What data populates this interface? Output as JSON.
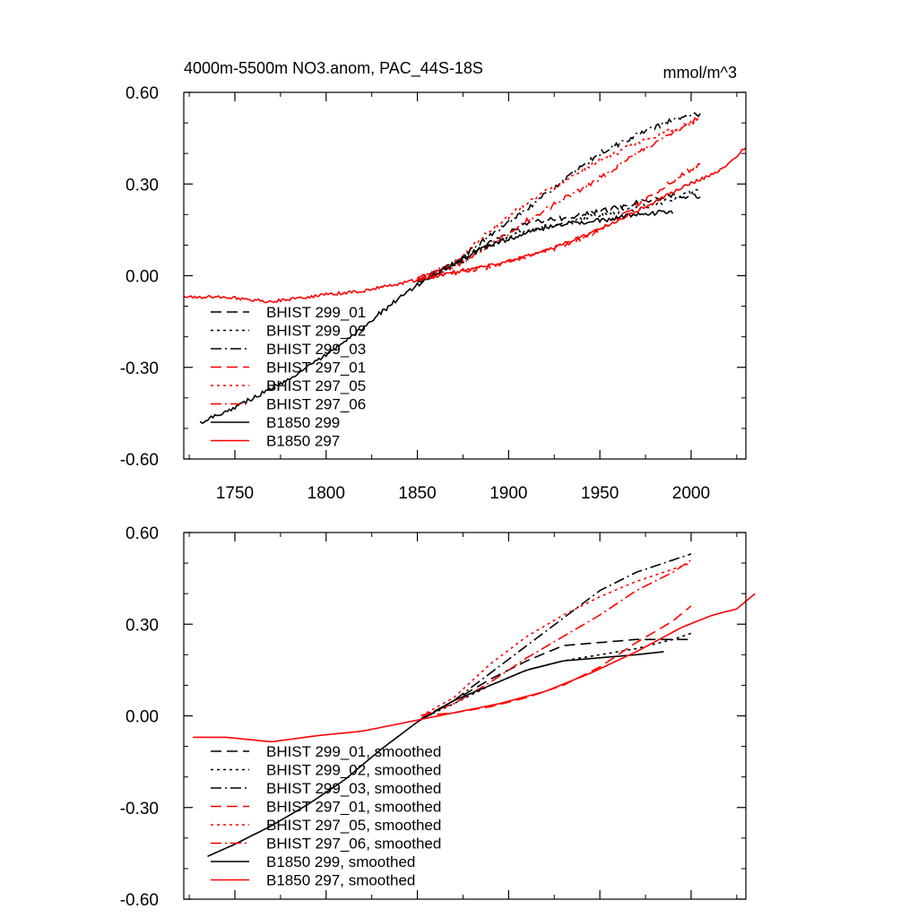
{
  "chart_data": [
    {
      "type": "line",
      "title": "4000m-5500m NO3.anom, PAC_44S-18S",
      "units": "mmol/m^3",
      "xlim": [
        1722,
        2030
      ],
      "ylim": [
        -0.6,
        0.6
      ],
      "xticks": [
        1750,
        1800,
        1850,
        1900,
        1950,
        2000
      ],
      "xtick_labels": [
        "1750",
        "1800",
        "1850",
        "1900",
        "1950",
        "2000"
      ],
      "yticks": [
        -0.6,
        -0.3,
        0.0,
        0.3,
        0.6
      ],
      "ytick_labels": [
        "-0.60",
        "-0.30",
        "0.00",
        "0.30",
        "0.60"
      ],
      "legend_position": "lower-left",
      "series": [
        {
          "name": "BHIST 299_01",
          "color": "#000000",
          "dash": "dash",
          "noise": 0.008,
          "points": [
            [
              1850,
              -0.02
            ],
            [
              1870,
              0.04
            ],
            [
              1890,
              0.11
            ],
            [
              1910,
              0.17
            ],
            [
              1930,
              0.19
            ],
            [
              1950,
              0.21
            ],
            [
              1970,
              0.24
            ],
            [
              1990,
              0.26
            ],
            [
              2005,
              0.26
            ]
          ]
        },
        {
          "name": "BHIST 299_02",
          "color": "#000000",
          "dash": "dot",
          "noise": 0.008,
          "points": [
            [
              1850,
              -0.02
            ],
            [
              1870,
              0.03
            ],
            [
              1890,
              0.1
            ],
            [
              1910,
              0.15
            ],
            [
              1930,
              0.17
            ],
            [
              1950,
              0.2
            ],
            [
              1970,
              0.22
            ],
            [
              1990,
              0.25
            ],
            [
              2005,
              0.28
            ]
          ]
        },
        {
          "name": "BHIST 299_03",
          "color": "#000000",
          "dash": "dashdot",
          "noise": 0.008,
          "points": [
            [
              1850,
              -0.02
            ],
            [
              1870,
              0.04
            ],
            [
              1890,
              0.13
            ],
            [
              1910,
              0.22
            ],
            [
              1930,
              0.31
            ],
            [
              1950,
              0.4
            ],
            [
              1970,
              0.46
            ],
            [
              1990,
              0.51
            ],
            [
              2005,
              0.53
            ]
          ]
        },
        {
          "name": "BHIST 297_01",
          "color": "#ff0000",
          "dash": "dash",
          "noise": 0.008,
          "points": [
            [
              1850,
              -0.01
            ],
            [
              1870,
              0.01
            ],
            [
              1890,
              0.03
            ],
            [
              1910,
              0.06
            ],
            [
              1930,
              0.1
            ],
            [
              1950,
              0.15
            ],
            [
              1970,
              0.23
            ],
            [
              1990,
              0.31
            ],
            [
              2005,
              0.37
            ]
          ]
        },
        {
          "name": "BHIST 297_05",
          "color": "#ff0000",
          "dash": "dot",
          "noise": 0.008,
          "points": [
            [
              1850,
              -0.01
            ],
            [
              1870,
              0.04
            ],
            [
              1890,
              0.15
            ],
            [
              1910,
              0.24
            ],
            [
              1930,
              0.31
            ],
            [
              1950,
              0.38
            ],
            [
              1970,
              0.43
            ],
            [
              1990,
              0.48
            ],
            [
              2005,
              0.51
            ]
          ]
        },
        {
          "name": "BHIST 297_06",
          "color": "#ff0000",
          "dash": "dashdot",
          "noise": 0.008,
          "points": [
            [
              1850,
              -0.01
            ],
            [
              1870,
              0.03
            ],
            [
              1890,
              0.1
            ],
            [
              1910,
              0.18
            ],
            [
              1930,
              0.25
            ],
            [
              1950,
              0.32
            ],
            [
              1970,
              0.4
            ],
            [
              1990,
              0.47
            ],
            [
              2005,
              0.52
            ]
          ]
        },
        {
          "name": "B1850 299",
          "color": "#000000",
          "dash": "solid",
          "noise": 0.007,
          "points": [
            [
              1731,
              -0.48
            ],
            [
              1750,
              -0.43
            ],
            [
              1770,
              -0.37
            ],
            [
              1790,
              -0.3
            ],
            [
              1810,
              -0.22
            ],
            [
              1830,
              -0.12
            ],
            [
              1850,
              -0.03
            ],
            [
              1870,
              0.04
            ],
            [
              1890,
              0.1
            ],
            [
              1910,
              0.14
            ],
            [
              1930,
              0.17
            ],
            [
              1950,
              0.18
            ],
            [
              1970,
              0.2
            ],
            [
              1990,
              0.21
            ]
          ]
        },
        {
          "name": "B1850 297",
          "color": "#ff0000",
          "dash": "solid",
          "noise": 0.005,
          "points": [
            [
              1722,
              -0.07
            ],
            [
              1745,
              -0.07
            ],
            [
              1770,
              -0.085
            ],
            [
              1795,
              -0.065
            ],
            [
              1820,
              -0.05
            ],
            [
              1845,
              -0.02
            ],
            [
              1870,
              0.01
            ],
            [
              1895,
              0.04
            ],
            [
              1920,
              0.08
            ],
            [
              1945,
              0.14
            ],
            [
              1970,
              0.21
            ],
            [
              1995,
              0.29
            ],
            [
              2015,
              0.34
            ],
            [
              2030,
              0.42
            ]
          ]
        }
      ]
    },
    {
      "type": "line",
      "xlim": [
        1722,
        2030
      ],
      "ylim": [
        -0.6,
        0.6
      ],
      "yticks": [
        -0.6,
        -0.3,
        0.0,
        0.3,
        0.6
      ],
      "ytick_labels": [
        "-0.60",
        "-0.30",
        "0.00",
        "0.30",
        "0.60"
      ],
      "legend_position": "lower-left",
      "series": [
        {
          "name": "BHIST 299_01, smoothed",
          "color": "#000000",
          "dash": "dash",
          "noise": 0,
          "points": [
            [
              1852,
              -0.01
            ],
            [
              1870,
              0.05
            ],
            [
              1890,
              0.12
            ],
            [
              1910,
              0.18
            ],
            [
              1930,
              0.23
            ],
            [
              1950,
              0.24
            ],
            [
              1970,
              0.25
            ],
            [
              1990,
              0.25
            ],
            [
              2000,
              0.25
            ]
          ]
        },
        {
          "name": "BHIST 299_02, smoothed",
          "color": "#000000",
          "dash": "dot",
          "noise": 0,
          "points": [
            [
              1852,
              -0.01
            ],
            [
              1870,
              0.04
            ],
            [
              1890,
              0.1
            ],
            [
              1910,
              0.15
            ],
            [
              1930,
              0.18
            ],
            [
              1950,
              0.2
            ],
            [
              1970,
              0.22
            ],
            [
              1990,
              0.25
            ],
            [
              2000,
              0.27
            ]
          ]
        },
        {
          "name": "BHIST 299_03, smoothed",
          "color": "#000000",
          "dash": "dashdot",
          "noise": 0,
          "points": [
            [
              1852,
              -0.01
            ],
            [
              1870,
              0.05
            ],
            [
              1890,
              0.14
            ],
            [
              1910,
              0.23
            ],
            [
              1930,
              0.32
            ],
            [
              1950,
              0.41
            ],
            [
              1970,
              0.47
            ],
            [
              1990,
              0.51
            ],
            [
              2000,
              0.53
            ]
          ]
        },
        {
          "name": "BHIST 297_01, smoothed",
          "color": "#ff0000",
          "dash": "dash",
          "noise": 0,
          "points": [
            [
              1852,
              0.0
            ],
            [
              1870,
              0.01
            ],
            [
              1890,
              0.03
            ],
            [
              1910,
              0.06
            ],
            [
              1930,
              0.1
            ],
            [
              1950,
              0.16
            ],
            [
              1970,
              0.24
            ],
            [
              1990,
              0.31
            ],
            [
              2000,
              0.36
            ]
          ]
        },
        {
          "name": "BHIST 297_05, smoothed",
          "color": "#ff0000",
          "dash": "dot",
          "noise": 0,
          "points": [
            [
              1852,
              0.0
            ],
            [
              1870,
              0.06
            ],
            [
              1890,
              0.17
            ],
            [
              1910,
              0.26
            ],
            [
              1930,
              0.33
            ],
            [
              1950,
              0.39
            ],
            [
              1970,
              0.44
            ],
            [
              1990,
              0.48
            ],
            [
              2000,
              0.5
            ]
          ]
        },
        {
          "name": "BHIST 297_06, smoothed",
          "color": "#ff0000",
          "dash": "dashdot",
          "noise": 0,
          "points": [
            [
              1852,
              0.0
            ],
            [
              1870,
              0.04
            ],
            [
              1890,
              0.11
            ],
            [
              1910,
              0.19
            ],
            [
              1930,
              0.26
            ],
            [
              1950,
              0.33
            ],
            [
              1970,
              0.41
            ],
            [
              1990,
              0.47
            ],
            [
              2000,
              0.51
            ]
          ]
        },
        {
          "name": "B1850 299, smoothed",
          "color": "#000000",
          "dash": "solid",
          "noise": 0,
          "points": [
            [
              1735,
              -0.46
            ],
            [
              1750,
              -0.42
            ],
            [
              1770,
              -0.36
            ],
            [
              1790,
              -0.29
            ],
            [
              1810,
              -0.21
            ],
            [
              1830,
              -0.11
            ],
            [
              1850,
              -0.02
            ],
            [
              1870,
              0.05
            ],
            [
              1890,
              0.1
            ],
            [
              1910,
              0.15
            ],
            [
              1930,
              0.18
            ],
            [
              1950,
              0.19
            ],
            [
              1970,
              0.2
            ],
            [
              1985,
              0.21
            ]
          ]
        },
        {
          "name": "B1850 297, smoothed",
          "color": "#ff0000",
          "dash": "solid",
          "noise": 0,
          "points": [
            [
              1727,
              -0.07
            ],
            [
              1745,
              -0.07
            ],
            [
              1770,
              -0.085
            ],
            [
              1795,
              -0.065
            ],
            [
              1820,
              -0.05
            ],
            [
              1845,
              -0.02
            ],
            [
              1870,
              0.01
            ],
            [
              1895,
              0.04
            ],
            [
              1920,
              0.08
            ],
            [
              1945,
              0.14
            ],
            [
              1970,
              0.21
            ],
            [
              1995,
              0.29
            ],
            [
              2012,
              0.33
            ],
            [
              2025,
              0.35
            ],
            [
              2035,
              0.4
            ]
          ]
        }
      ]
    }
  ]
}
